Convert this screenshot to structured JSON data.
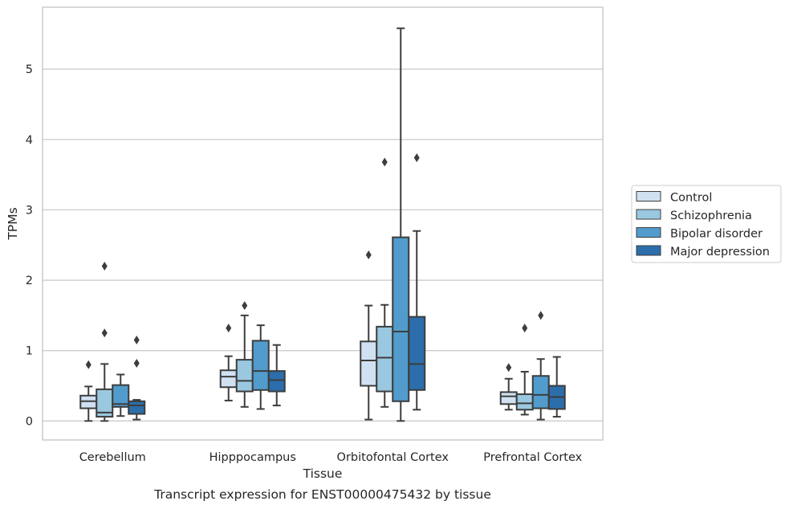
{
  "caption": "Transcript expression for ENST00000475432 by tissue",
  "chart_data": {
    "type": "boxplot",
    "xlabel": "Tissue",
    "ylabel": "TPMs",
    "ylim": [
      -0.27,
      5.88
    ],
    "yticks": [
      0,
      1,
      2,
      3,
      4,
      5
    ],
    "grid": "horizontal",
    "legend_placement": "right",
    "categories": [
      "Cerebellum",
      "Hipppocampus",
      "Orbitofontal Cortex",
      "Prefrontal Cortex"
    ],
    "series": [
      {
        "name": "Control",
        "color": "#d0e1f2",
        "boxes": [
          {
            "whislo": 0.0,
            "q1": 0.18,
            "med": 0.28,
            "q3": 0.36,
            "whishi": 0.49,
            "fliers": [
              0.8
            ]
          },
          {
            "whislo": 0.29,
            "q1": 0.48,
            "med": 0.63,
            "q3": 0.72,
            "whishi": 0.92,
            "fliers": [
              1.32
            ]
          },
          {
            "whislo": 0.02,
            "q1": 0.5,
            "med": 0.86,
            "q3": 1.13,
            "whishi": 1.64,
            "fliers": [
              2.36
            ]
          },
          {
            "whislo": 0.16,
            "q1": 0.24,
            "med": 0.35,
            "q3": 0.41,
            "whishi": 0.6,
            "fliers": [
              0.76
            ]
          }
        ]
      },
      {
        "name": "Schizophrenia",
        "color": "#9ac8e0",
        "boxes": [
          {
            "whislo": 0.0,
            "q1": 0.06,
            "med": 0.12,
            "q3": 0.45,
            "whishi": 0.81,
            "fliers": [
              2.2,
              1.25
            ]
          },
          {
            "whislo": 0.2,
            "q1": 0.42,
            "med": 0.57,
            "q3": 0.87,
            "whishi": 1.5,
            "fliers": [
              1.64
            ]
          },
          {
            "whislo": 0.2,
            "q1": 0.42,
            "med": 0.9,
            "q3": 1.34,
            "whishi": 1.65,
            "fliers": [
              3.68
            ]
          },
          {
            "whislo": 0.09,
            "q1": 0.16,
            "med": 0.25,
            "q3": 0.38,
            "whishi": 0.7,
            "fliers": [
              1.32
            ]
          }
        ]
      },
      {
        "name": "Bipolar disorder",
        "color": "#519ccc",
        "boxes": [
          {
            "whislo": 0.07,
            "q1": 0.2,
            "med": 0.24,
            "q3": 0.51,
            "whishi": 0.66,
            "fliers": []
          },
          {
            "whislo": 0.17,
            "q1": 0.44,
            "med": 0.71,
            "q3": 1.14,
            "whishi": 1.36,
            "fliers": []
          },
          {
            "whislo": 0.0,
            "q1": 0.28,
            "med": 1.27,
            "q3": 2.61,
            "whishi": 5.58,
            "fliers": []
          },
          {
            "whislo": 0.02,
            "q1": 0.18,
            "med": 0.37,
            "q3": 0.64,
            "whishi": 0.88,
            "fliers": [
              1.5
            ]
          }
        ]
      },
      {
        "name": "Major depression",
        "color": "#2b6eab",
        "boxes": [
          {
            "whislo": 0.02,
            "q1": 0.1,
            "med": 0.22,
            "q3": 0.28,
            "whishi": 0.3,
            "fliers": [
              1.15,
              0.82
            ]
          },
          {
            "whislo": 0.22,
            "q1": 0.42,
            "med": 0.58,
            "q3": 0.71,
            "whishi": 1.08,
            "fliers": []
          },
          {
            "whislo": 0.16,
            "q1": 0.44,
            "med": 0.81,
            "q3": 1.48,
            "whishi": 2.7,
            "fliers": [
              3.74
            ]
          },
          {
            "whislo": 0.06,
            "q1": 0.17,
            "med": 0.34,
            "q3": 0.5,
            "whishi": 0.91,
            "fliers": []
          }
        ]
      }
    ]
  }
}
